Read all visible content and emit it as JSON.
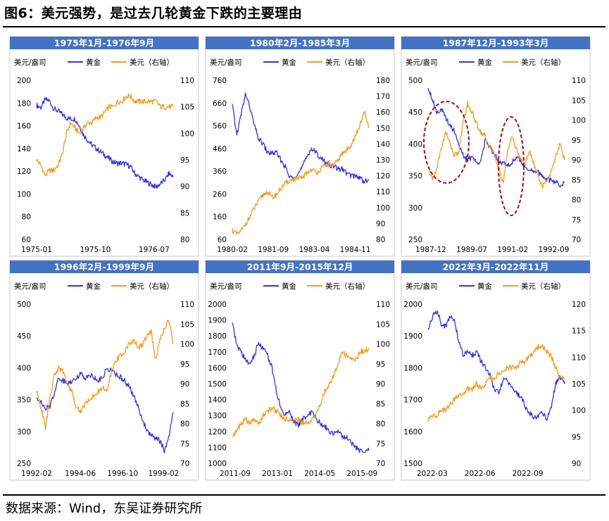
{
  "title": "图6：美元强势，是过去几轮黄金下跌的主要理由",
  "source": "数据来源：Wind，东吴证券研究所",
  "colors": {
    "gold": "#3333dd",
    "usd": "#f39c1e",
    "header_bg": "#4472c4",
    "header_text": "#ffffff",
    "ellipse": "#a01010"
  },
  "chart_data": [
    {
      "type": "line",
      "title": "1975年1月-1976年9月",
      "left_unit": "美元/盎司",
      "legend": [
        "黄金",
        "美元（右轴）"
      ],
      "left_ticks": [
        "200",
        "180",
        "160",
        "140",
        "120",
        "100",
        "80",
        "60"
      ],
      "ylim_left": [
        60,
        200
      ],
      "right_ticks": [
        "110",
        "105",
        "100",
        "95",
        "90",
        "85",
        "80"
      ],
      "ylim_right": [
        80,
        110
      ],
      "x_ticks": [
        "1975-01",
        "1975-10",
        "1976-07"
      ],
      "x_tick_pos": [
        0,
        0.43,
        0.86
      ],
      "series": [
        {
          "name": "黄金",
          "axis": "left",
          "values": [
            178,
            176,
            183,
            182,
            175,
            173,
            170,
            167,
            166,
            166,
            160,
            152,
            147,
            143,
            140,
            137,
            134,
            131,
            128,
            127,
            127,
            126,
            124,
            118,
            115,
            112,
            110,
            108,
            106,
            109,
            112,
            118,
            115
          ]
        },
        {
          "name": "美元（右轴）",
          "axis": "right",
          "values": [
            95,
            94,
            92,
            93,
            93,
            94,
            96,
            100,
            102,
            101,
            100,
            101,
            102,
            102,
            103,
            103,
            104,
            105,
            105,
            106,
            106,
            107,
            107,
            106,
            106,
            106,
            106,
            106,
            106,
            105,
            105,
            105,
            105
          ]
        }
      ]
    },
    {
      "type": "line",
      "title": "1980年2月-1985年3月",
      "left_unit": "美元/盎司",
      "legend": [
        "黄金",
        "美元（右轴）"
      ],
      "left_ticks": [
        "760",
        "660",
        "560",
        "460",
        "360",
        "260",
        "160",
        "60"
      ],
      "ylim_left": [
        60,
        760
      ],
      "right_ticks": [
        "180",
        "170",
        "160",
        "150",
        "140",
        "130",
        "120",
        "110",
        "100",
        "90",
        "80"
      ],
      "ylim_right": [
        80,
        180
      ],
      "x_ticks": [
        "1980-02",
        "1981-09",
        "1983-04",
        "1984-11"
      ],
      "x_tick_pos": [
        0,
        0.3,
        0.6,
        0.9
      ],
      "series": [
        {
          "name": "黄金",
          "axis": "left",
          "values": [
            650,
            520,
            610,
            700,
            640,
            560,
            500,
            480,
            440,
            440,
            440,
            410,
            380,
            330,
            340,
            350,
            380,
            430,
            460,
            440,
            420,
            400,
            390,
            380,
            370,
            370,
            350,
            340,
            340,
            330,
            315,
            320
          ]
        },
        {
          "name": "美元（右轴）",
          "axis": "right",
          "values": [
            86,
            83,
            85,
            90,
            94,
            100,
            104,
            108,
            110,
            106,
            108,
            112,
            115,
            117,
            118,
            118,
            119,
            122,
            124,
            122,
            124,
            126,
            128,
            126,
            130,
            134,
            136,
            140,
            145,
            152,
            160,
            150
          ]
        }
      ]
    },
    {
      "type": "line",
      "title": "1987年12月-1993年3月",
      "left_unit": "美元/盎司",
      "legend": [
        "黄金",
        "美元（右轴）"
      ],
      "left_ticks": [
        "500",
        "450",
        "400",
        "350",
        "300",
        "250"
      ],
      "ylim_left": [
        250,
        500
      ],
      "right_ticks": [
        "110",
        "105",
        "100",
        "95",
        "90",
        "85",
        "80",
        "75",
        "70"
      ],
      "ylim_right": [
        70,
        110
      ],
      "x_ticks": [
        "1987-12",
        "1989-07",
        "1991-02",
        "1992-09"
      ],
      "x_tick_pos": [
        0.02,
        0.32,
        0.62,
        0.92
      ],
      "series": [
        {
          "name": "黄金",
          "axis": "left",
          "values": [
            490,
            470,
            450,
            455,
            440,
            430,
            420,
            400,
            380,
            375,
            380,
            370,
            375,
            405,
            395,
            385,
            375,
            370,
            365,
            370,
            380,
            372,
            365,
            360,
            355,
            355,
            350,
            345,
            342,
            340,
            335,
            340
          ]
        },
        {
          "name": "美元（右轴）",
          "axis": "right",
          "values": [
            88,
            85,
            88,
            93,
            97,
            94,
            91,
            92,
            100,
            104,
            102,
            99,
            97,
            96,
            93,
            92,
            88,
            84,
            92,
            96,
            93,
            90,
            89,
            92,
            89,
            86,
            83,
            85,
            87,
            91,
            94,
            90
          ]
        }
      ]
    },
    {
      "type": "line",
      "title": "1996年2月-1999年9月",
      "left_unit": "美元/盎司",
      "legend": [
        "黄金",
        "美元（右轴）"
      ],
      "left_ticks": [
        "500",
        "450",
        "400",
        "350",
        "300",
        "250"
      ],
      "ylim_left": [
        250,
        500
      ],
      "right_ticks": [
        "110",
        "105",
        "100",
        "95",
        "90",
        "85",
        "80",
        "75",
        "70"
      ],
      "ylim_right": [
        70,
        110
      ],
      "x_ticks": [
        "1992-02",
        "1994-06",
        "1996-10",
        "1999-02"
      ],
      "x_tick_pos": [
        0,
        0.32,
        0.63,
        0.93
      ],
      "series": [
        {
          "name": "黄金",
          "axis": "left",
          "values": [
            355,
            345,
            335,
            340,
            360,
            385,
            380,
            375,
            380,
            385,
            390,
            385,
            390,
            385,
            380,
            385,
            400,
            395,
            390,
            385,
            380,
            370,
            355,
            340,
            320,
            300,
            295,
            290,
            285,
            270,
            290,
            330
          ]
        },
        {
          "name": "美元（右轴）",
          "axis": "right",
          "values": [
            88,
            84,
            79,
            86,
            92,
            94,
            93,
            90,
            88,
            84,
            83,
            85,
            86,
            87,
            88,
            89,
            88,
            93,
            96,
            97,
            98,
            100,
            101,
            99,
            100,
            102,
            103,
            96,
            101,
            104,
            106,
            100
          ]
        }
      ]
    },
    {
      "type": "line",
      "title": "2011年9月-2015年12月",
      "left_unit": "美元/盎司",
      "legend": [
        "黄金",
        "美元（右轴）"
      ],
      "left_ticks": [
        "2000",
        "1900",
        "1800",
        "1700",
        "1600",
        "1500",
        "1400",
        "1300",
        "1200",
        "1100",
        "1000"
      ],
      "ylim_left": [
        1000,
        2000
      ],
      "right_ticks": [
        "110",
        "105",
        "100",
        "95",
        "90",
        "85",
        "80",
        "75",
        "70"
      ],
      "ylim_right": [
        70,
        110
      ],
      "x_ticks": [
        "2011-09",
        "2013-01",
        "2014-05",
        "2015-09"
      ],
      "x_tick_pos": [
        0.02,
        0.33,
        0.64,
        0.95
      ],
      "series": [
        {
          "name": "黄金",
          "axis": "left",
          "values": [
            1880,
            1740,
            1700,
            1650,
            1620,
            1680,
            1760,
            1720,
            1680,
            1600,
            1450,
            1350,
            1300,
            1330,
            1260,
            1240,
            1280,
            1300,
            1320,
            1280,
            1250,
            1230,
            1200,
            1190,
            1210,
            1170,
            1160,
            1130,
            1100,
            1080,
            1070,
            1080
          ]
        },
        {
          "name": "美元（右轴）",
          "axis": "right",
          "values": [
            77,
            78,
            80,
            81,
            80,
            81,
            80,
            82,
            83,
            84,
            83,
            82,
            81,
            81,
            81,
            81,
            80,
            80,
            81,
            82,
            85,
            88,
            90,
            92,
            95,
            98,
            97,
            96,
            96,
            98,
            98,
            99
          ]
        }
      ]
    },
    {
      "type": "line",
      "title": "2022年3月-2022年11月",
      "left_unit": "美元/盎司",
      "legend": [
        "黄金",
        "美元（右轴）"
      ],
      "left_ticks": [
        "2000",
        "1900",
        "1800",
        "1700",
        "1600",
        "1500"
      ],
      "ylim_left": [
        1500,
        2000
      ],
      "right_ticks": [
        "120",
        "115",
        "110",
        "105",
        "100",
        "95",
        "90"
      ],
      "ylim_right": [
        90,
        120
      ],
      "x_ticks": [
        "2022-03",
        "2022-06",
        "2022-09"
      ],
      "x_tick_pos": [
        0.03,
        0.38,
        0.73
      ],
      "series": [
        {
          "name": "黄金",
          "axis": "left",
          "values": [
            1920,
            1960,
            1980,
            1940,
            1930,
            1960,
            1950,
            1880,
            1840,
            1850,
            1840,
            1850,
            1820,
            1800,
            1780,
            1730,
            1720,
            1760,
            1760,
            1740,
            1720,
            1710,
            1680,
            1660,
            1640,
            1650,
            1660,
            1640,
            1680,
            1750,
            1770,
            1750
          ]
        },
        {
          "name": "美元（右轴）",
          "axis": "right",
          "values": [
            98,
            99,
            99,
            100,
            100,
            101,
            102,
            103,
            103,
            104,
            104,
            105,
            104,
            105,
            106,
            106,
            107,
            107,
            108,
            108,
            108,
            109,
            109,
            110,
            111,
            112,
            112,
            111,
            110,
            108,
            106,
            106
          ]
        }
      ]
    }
  ]
}
